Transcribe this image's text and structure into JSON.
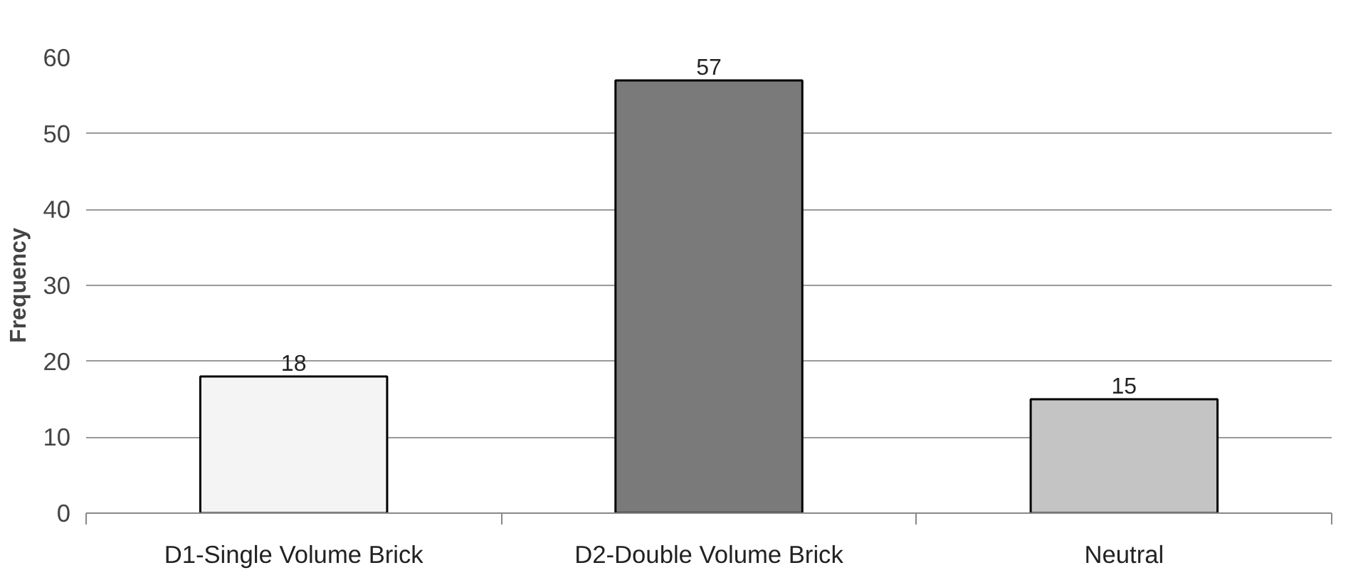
{
  "chart_data": {
    "type": "bar",
    "ylabel": "Frequency",
    "categories": [
      "D1-Single Volume Brick",
      "D2-Double Volume Brick",
      "Neutral"
    ],
    "values": [
      18,
      57,
      15
    ],
    "colors": [
      "#f4f4f4",
      "#7a7a7a",
      "#c4c4c4"
    ],
    "ylim": [
      0,
      60
    ],
    "yticks": [
      0,
      10,
      20,
      30,
      40,
      50,
      60
    ],
    "grid": "y",
    "data_labels": true
  }
}
